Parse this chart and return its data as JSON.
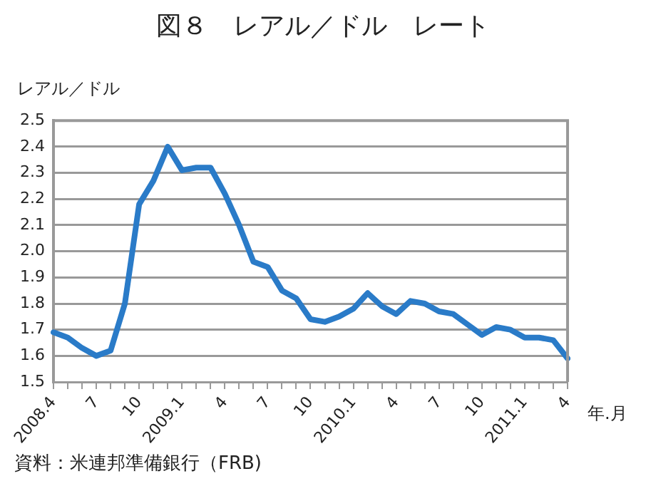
{
  "chart_data": {
    "type": "line",
    "title": "図８　レアル／ドル　レート",
    "ylabel": "レアル／ドル",
    "xlabel": "年.月",
    "annotations": [
      "資料：米連邦準備銀行（FRB)"
    ],
    "categories": [
      "2008.4",
      null,
      null,
      "7",
      null,
      null,
      "10",
      null,
      null,
      "2009.1",
      null,
      null,
      "4",
      null,
      null,
      "7",
      null,
      null,
      "10",
      null,
      null,
      "2010.1",
      null,
      null,
      "4",
      null,
      null,
      "7",
      null,
      null,
      "10",
      null,
      null,
      "2011.1",
      null,
      null,
      "4"
    ],
    "series": [
      {
        "color": "#2a7bc8",
        "values": [
          1.69,
          1.67,
          1.63,
          1.6,
          1.62,
          1.8,
          2.18,
          2.27,
          2.4,
          2.31,
          2.32,
          2.32,
          2.22,
          2.1,
          1.96,
          1.94,
          1.85,
          1.82,
          1.74,
          1.73,
          1.75,
          1.78,
          1.84,
          1.79,
          1.76,
          1.81,
          1.8,
          1.77,
          1.76,
          1.72,
          1.68,
          1.71,
          1.7,
          1.67,
          1.67,
          1.66,
          1.59
        ]
      }
    ],
    "ylim": [
      1.5,
      2.5
    ],
    "yticks": [
      {
        "value": 1.5,
        "label": "1.5"
      },
      {
        "value": 1.6,
        "label": "1.6"
      },
      {
        "value": 1.7,
        "label": "1.7"
      },
      {
        "value": 1.8,
        "label": "1.8"
      },
      {
        "value": 1.9,
        "label": "1.9"
      },
      {
        "value": 2.0,
        "label": "2.0"
      },
      {
        "value": 2.1,
        "label": "2.1"
      },
      {
        "value": 2.2,
        "label": "2.2"
      },
      {
        "value": 2.3,
        "label": "2.3"
      },
      {
        "value": 2.4,
        "label": "2.4"
      },
      {
        "value": 2.5,
        "label": "2.5"
      }
    ],
    "grid": "y",
    "legend": false,
    "marker": "none",
    "line_style": "solid"
  }
}
